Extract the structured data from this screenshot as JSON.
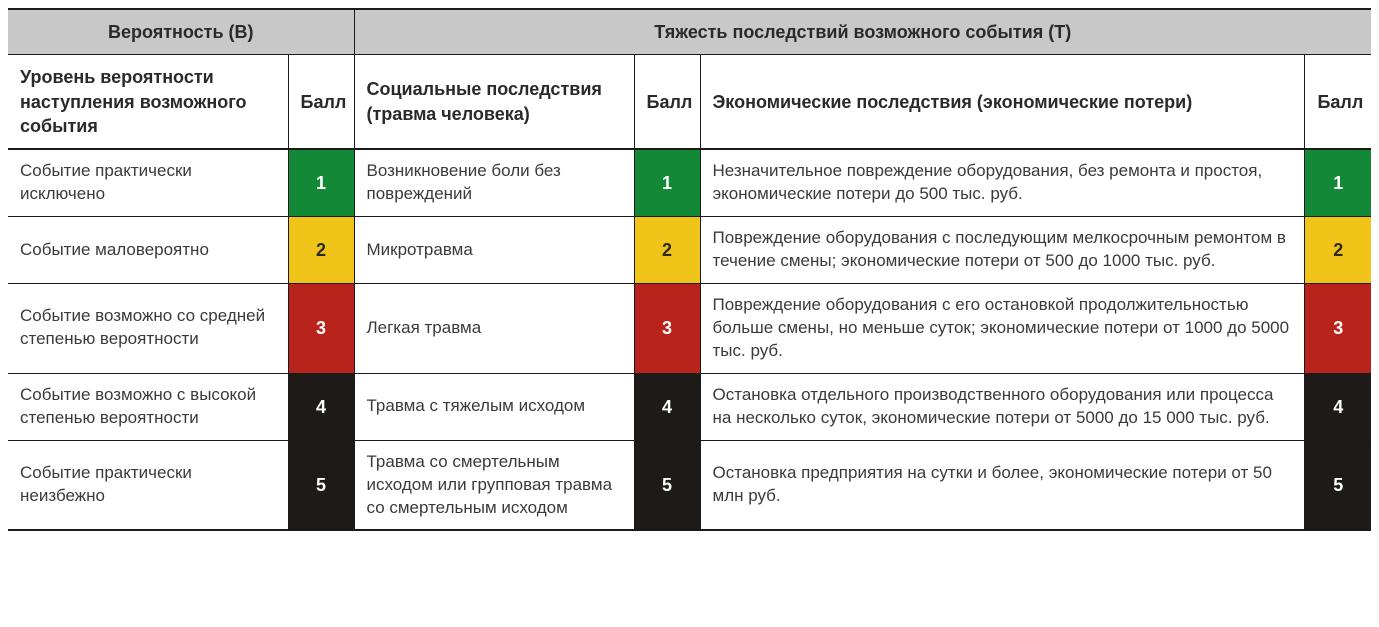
{
  "colors": {
    "header_bg": "#c8c8c8",
    "border": "#1a1a1a",
    "text": "#3a3a38",
    "score_text": "#ffffff",
    "levels": {
      "1": "#138836",
      "2": "#f0c419",
      "3": "#b8241c",
      "4": "#1e1a18",
      "5": "#1e1a18"
    }
  },
  "header": {
    "probability_title": "Вероятность (В)",
    "severity_title": "Тяжесть последствий возможного события (Т)"
  },
  "subheader": {
    "probability_level": "Уровень вероятности наступления возможного события",
    "score": "Балл",
    "social": "Социальные последствия (травма человека)",
    "economic": "Экономические последствия (экономические потери)"
  },
  "rows": [
    {
      "probability": "Событие практически исключено",
      "score": "1",
      "social": "Возникновение боли без повреждений",
      "economic": "Незначительное повреждение оборудования, без ремонта и простоя, экономические потери до 500 тыс. руб."
    },
    {
      "probability": "Событие маловероятно",
      "score": "2",
      "social": "Микротравма",
      "economic": "Повреждение оборудования с последующим мелкосрочным ремонтом в течение смены; экономические потери от 500 до 1000 тыс. руб."
    },
    {
      "probability": "Событие возможно со средней степенью вероятности",
      "score": "3",
      "social": "Легкая травма",
      "economic": "Повреждение оборудования с его остановкой продолжительностью больше смены, но меньше суток; экономические потери от 1000 до 5000 тыс. руб."
    },
    {
      "probability": "Событие возможно с высокой степенью вероятности",
      "score": "4",
      "social": "Травма с тяжелым исходом",
      "economic": "Остановка отдельного производственного оборудования или процесса на несколько суток, экономические потери от 5000 до 15 000 тыс. руб."
    },
    {
      "probability": "Событие практически неизбежно",
      "score": "5",
      "social": "Травма со смертельным исходом или групповая травма со смертельным исходом",
      "economic": "Остановка предприятия на сутки и более, экономические потери от 50 млн руб."
    }
  ]
}
